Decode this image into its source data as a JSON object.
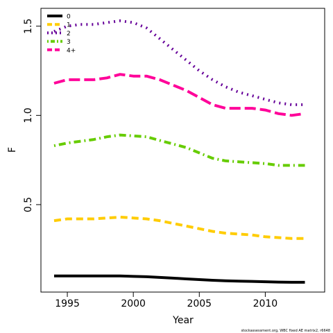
{
  "chart_data": {
    "type": "line",
    "title": "",
    "xlabel": "Year",
    "ylabel": "F",
    "xlim": [
      1993,
      2014.5
    ],
    "ylim": [
      0.01,
      1.6
    ],
    "x_ticks": [
      "1995",
      "2000",
      "2005",
      "2010"
    ],
    "y_ticks": [
      "0.5",
      "1.0",
      "1.5"
    ],
    "legend_position": "top-left",
    "grid": false,
    "footnote": "stockassessment.org,  WBC fixed  AE  matrix2, r6648",
    "x": [
      1994,
      1995,
      1996,
      1997,
      1998,
      1999,
      2000,
      2001,
      2002,
      2003,
      2004,
      2005,
      2006,
      2007,
      2008,
      2009,
      2010,
      2011,
      2012,
      2013
    ],
    "series": [
      {
        "name": "0",
        "color": "#000000",
        "dash": "solid",
        "values": [
          0.1,
          0.1,
          0.1,
          0.1,
          0.1,
          0.1,
          0.098,
          0.096,
          0.092,
          0.088,
          0.084,
          0.08,
          0.076,
          0.073,
          0.071,
          0.07,
          0.068,
          0.066,
          0.065,
          0.065
        ]
      },
      {
        "name": "1",
        "color": "#FFCC00",
        "dash": "dashed",
        "values": [
          0.41,
          0.42,
          0.42,
          0.42,
          0.425,
          0.43,
          0.425,
          0.42,
          0.41,
          0.395,
          0.38,
          0.365,
          0.35,
          0.34,
          0.335,
          0.33,
          0.32,
          0.315,
          0.31,
          0.31
        ]
      },
      {
        "name": "2",
        "color": "#660099",
        "dash": "dotted",
        "values": [
          1.47,
          1.5,
          1.51,
          1.51,
          1.52,
          1.53,
          1.52,
          1.49,
          1.43,
          1.37,
          1.31,
          1.25,
          1.2,
          1.16,
          1.13,
          1.11,
          1.09,
          1.07,
          1.06,
          1.06
        ]
      },
      {
        "name": "3",
        "color": "#66CC00",
        "dash": "dotdash",
        "values": [
          0.83,
          0.845,
          0.855,
          0.865,
          0.88,
          0.89,
          0.885,
          0.88,
          0.86,
          0.84,
          0.82,
          0.79,
          0.76,
          0.745,
          0.74,
          0.735,
          0.73,
          0.72,
          0.72,
          0.72
        ]
      },
      {
        "name": "4+",
        "color": "#FF0099",
        "dash": "longdash",
        "values": [
          1.18,
          1.2,
          1.2,
          1.2,
          1.21,
          1.23,
          1.22,
          1.22,
          1.2,
          1.17,
          1.14,
          1.1,
          1.06,
          1.04,
          1.04,
          1.04,
          1.03,
          1.01,
          1.0,
          1.01
        ]
      }
    ]
  }
}
